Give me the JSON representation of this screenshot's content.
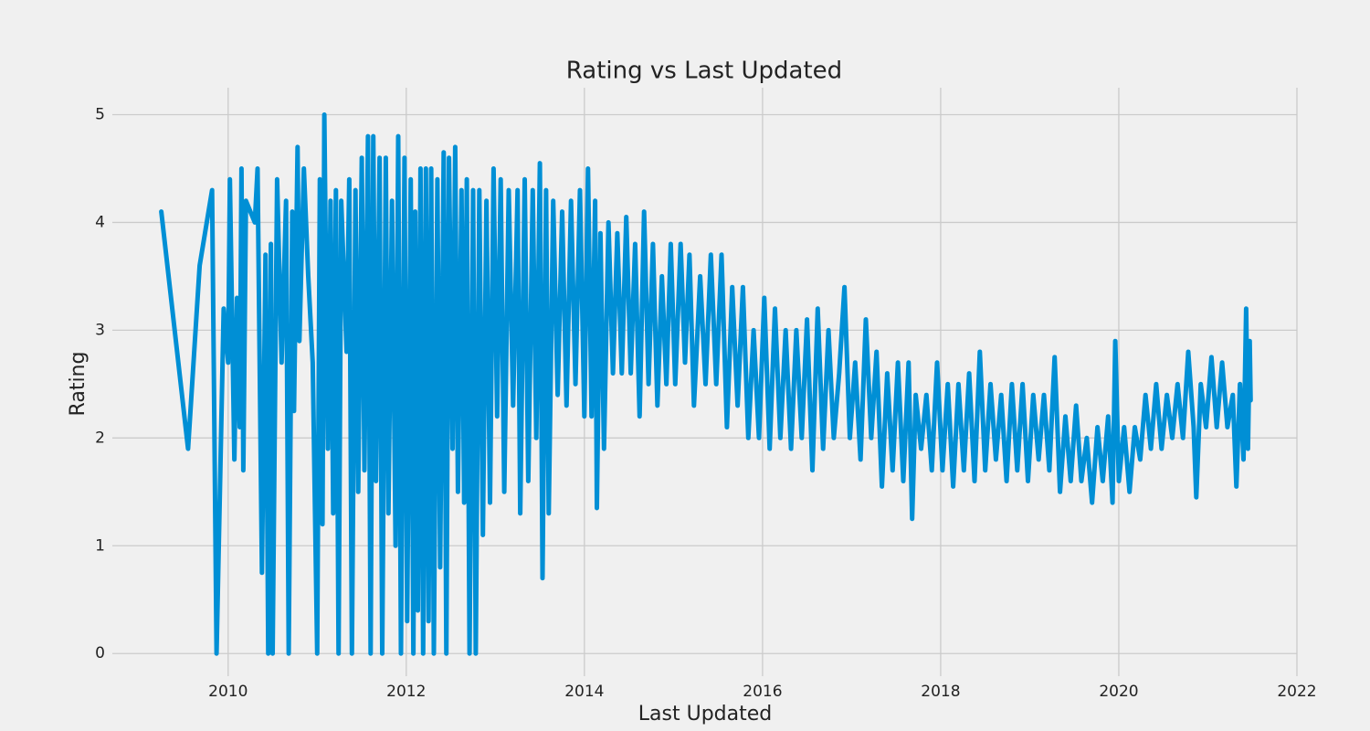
{
  "chart_data": {
    "type": "line",
    "title": "Rating vs Last Updated",
    "xlabel": "Last Updated",
    "ylabel": "Rating",
    "x": [
      2009.25,
      2009.55,
      2009.68,
      2009.82,
      2009.87,
      2009.95,
      2010.0,
      2010.02,
      2010.07,
      2010.1,
      2010.13,
      2010.15,
      2010.17,
      2010.2,
      2010.3,
      2010.33,
      2010.38,
      2010.42,
      2010.45,
      2010.48,
      2010.5,
      2010.55,
      2010.6,
      2010.65,
      2010.68,
      2010.72,
      2010.74,
      2010.78,
      2010.8,
      2010.85,
      2010.9,
      2010.95,
      2011.0,
      2011.03,
      2011.06,
      2011.08,
      2011.12,
      2011.15,
      2011.18,
      2011.21,
      2011.24,
      2011.27,
      2011.33,
      2011.36,
      2011.39,
      2011.43,
      2011.46,
      2011.5,
      2011.53,
      2011.57,
      2011.6,
      2011.63,
      2011.66,
      2011.7,
      2011.73,
      2011.77,
      2011.8,
      2011.84,
      2011.88,
      2011.91,
      2011.94,
      2011.98,
      2012.01,
      2012.05,
      2012.08,
      2012.1,
      2012.13,
      2012.16,
      2012.19,
      2012.22,
      2012.25,
      2012.28,
      2012.31,
      2012.35,
      2012.38,
      2012.42,
      2012.45,
      2012.48,
      2012.52,
      2012.55,
      2012.58,
      2012.62,
      2012.65,
      2012.68,
      2012.71,
      2012.75,
      2012.78,
      2012.82,
      2012.86,
      2012.9,
      2012.94,
      2012.98,
      2013.02,
      2013.06,
      2013.1,
      2013.15,
      2013.2,
      2013.25,
      2013.28,
      2013.33,
      2013.37,
      2013.42,
      2013.46,
      2013.5,
      2013.53,
      2013.57,
      2013.6,
      2013.65,
      2013.7,
      2013.75,
      2013.8,
      2013.85,
      2013.9,
      2013.95,
      2014.0,
      2014.04,
      2014.08,
      2014.12,
      2014.14,
      2014.18,
      2014.22,
      2014.27,
      2014.32,
      2014.37,
      2014.42,
      2014.47,
      2014.52,
      2014.57,
      2014.62,
      2014.67,
      2014.72,
      2014.77,
      2014.82,
      2014.87,
      2014.92,
      2014.97,
      2015.02,
      2015.08,
      2015.13,
      2015.18,
      2015.23,
      2015.3,
      2015.36,
      2015.42,
      2015.48,
      2015.54,
      2015.6,
      2015.66,
      2015.72,
      2015.78,
      2015.84,
      2015.9,
      2015.96,
      2016.02,
      2016.08,
      2016.14,
      2016.2,
      2016.26,
      2016.32,
      2016.38,
      2016.44,
      2016.5,
      2016.56,
      2016.62,
      2016.68,
      2016.74,
      2016.8,
      2016.86,
      2016.92,
      2016.98,
      2017.04,
      2017.1,
      2017.16,
      2017.22,
      2017.28,
      2017.34,
      2017.4,
      2017.46,
      2017.52,
      2017.58,
      2017.64,
      2017.68,
      2017.72,
      2017.78,
      2017.84,
      2017.9,
      2017.96,
      2018.02,
      2018.08,
      2018.14,
      2018.2,
      2018.26,
      2018.32,
      2018.38,
      2018.44,
      2018.5,
      2018.56,
      2018.62,
      2018.68,
      2018.74,
      2018.8,
      2018.86,
      2018.92,
      2018.98,
      2019.04,
      2019.1,
      2019.16,
      2019.22,
      2019.28,
      2019.34,
      2019.4,
      2019.46,
      2019.52,
      2019.58,
      2019.64,
      2019.7,
      2019.76,
      2019.82,
      2019.88,
      2019.93,
      2019.96,
      2020.0,
      2020.06,
      2020.12,
      2020.18,
      2020.24,
      2020.3,
      2020.36,
      2020.42,
      2020.48,
      2020.54,
      2020.6,
      2020.66,
      2020.72,
      2020.78,
      2020.84,
      2020.87,
      2020.92,
      2020.98,
      2021.04,
      2021.1,
      2021.16,
      2021.22,
      2021.28,
      2021.32,
      2021.36,
      2021.4,
      2021.43,
      2021.45,
      2021.47,
      2021.48
    ],
    "series": [
      {
        "name": "Rating",
        "color": "#008fd5",
        "values": [
          4.1,
          1.9,
          3.6,
          4.3,
          0,
          3.2,
          2.7,
          4.4,
          1.8,
          3.3,
          2.1,
          4.5,
          1.7,
          4.2,
          4.0,
          4.5,
          0.75,
          3.7,
          0,
          3.8,
          0,
          4.4,
          2.7,
          4.2,
          0,
          4.1,
          2.25,
          4.7,
          2.9,
          4.5,
          3.5,
          2.7,
          0,
          4.4,
          1.2,
          5.0,
          1.9,
          4.2,
          1.3,
          4.3,
          0,
          4.2,
          2.8,
          4.4,
          0,
          4.3,
          1.5,
          4.6,
          1.7,
          4.8,
          0,
          4.8,
          1.6,
          4.6,
          0,
          4.6,
          1.3,
          4.2,
          1.0,
          4.8,
          0,
          4.6,
          0.3,
          4.4,
          0,
          4.1,
          0.4,
          4.5,
          0,
          4.5,
          0.3,
          4.5,
          0,
          4.4,
          0.8,
          4.65,
          0,
          4.6,
          1.9,
          4.7,
          1.5,
          4.3,
          1.4,
          4.4,
          0,
          4.3,
          0,
          4.3,
          1.1,
          4.2,
          1.4,
          4.5,
          2.2,
          4.4,
          1.5,
          4.3,
          2.3,
          4.3,
          1.3,
          4.4,
          1.6,
          4.3,
          2.0,
          4.55,
          0.7,
          4.3,
          1.3,
          4.2,
          2.4,
          4.1,
          2.3,
          4.2,
          2.5,
          4.3,
          2.2,
          4.5,
          2.2,
          4.2,
          1.35,
          3.9,
          1.9,
          4.0,
          2.6,
          3.9,
          2.6,
          4.05,
          2.6,
          3.8,
          2.2,
          4.1,
          2.5,
          3.8,
          2.3,
          3.5,
          2.5,
          3.8,
          2.5,
          3.8,
          2.7,
          3.7,
          2.3,
          3.5,
          2.5,
          3.7,
          2.5,
          3.7,
          2.1,
          3.4,
          2.3,
          3.4,
          2.0,
          3.0,
          2.0,
          3.3,
          1.9,
          3.2,
          2.0,
          3.0,
          1.9,
          3.0,
          2.0,
          3.1,
          1.7,
          3.2,
          1.9,
          3.0,
          2.0,
          2.6,
          3.4,
          2.0,
          2.7,
          1.8,
          3.1,
          2.0,
          2.8,
          1.55,
          2.6,
          1.7,
          2.7,
          1.6,
          2.7,
          1.25,
          2.4,
          1.9,
          2.4,
          1.7,
          2.7,
          1.7,
          2.5,
          1.55,
          2.5,
          1.7,
          2.6,
          1.6,
          2.8,
          1.7,
          2.5,
          1.8,
          2.4,
          1.6,
          2.5,
          1.7,
          2.5,
          1.6,
          2.4,
          1.8,
          2.4,
          1.7,
          2.75,
          1.5,
          2.2,
          1.6,
          2.3,
          1.6,
          2.0,
          1.4,
          2.1,
          1.6,
          2.2,
          1.4,
          2.9,
          1.6,
          2.1,
          1.5,
          2.1,
          1.8,
          2.4,
          1.9,
          2.5,
          1.9,
          2.4,
          2.0,
          2.5,
          2.0,
          2.8,
          2.1,
          1.45,
          2.5,
          2.1,
          2.75,
          2.1,
          2.7,
          2.1,
          2.4,
          1.55,
          2.5,
          1.8,
          3.2,
          1.9,
          2.9,
          2.35
        ]
      }
    ],
    "xlim": [
      2008.7,
      2022.0
    ],
    "ylim": [
      -0.21,
      5.25
    ],
    "xticks": [
      2010,
      2012,
      2014,
      2016,
      2018,
      2020,
      2022
    ],
    "yticks": [
      0,
      1,
      2,
      3,
      4,
      5
    ],
    "grid": true
  }
}
